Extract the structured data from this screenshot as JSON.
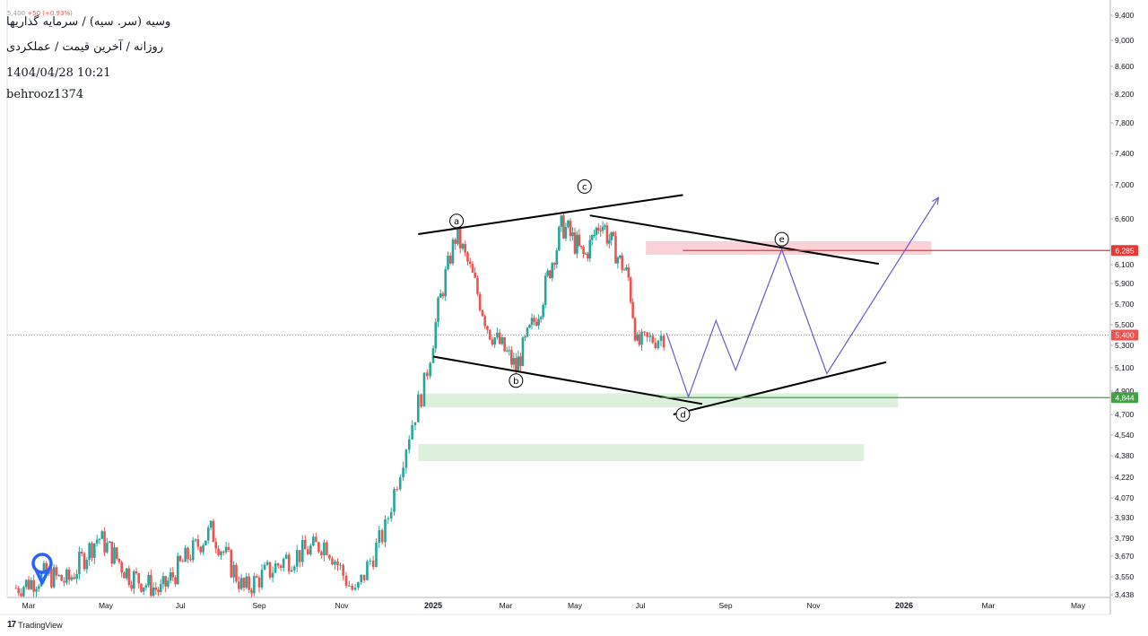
{
  "header": {
    "ohlc_text": "5,400",
    "ohlc_change": "+50 (+0.93%)",
    "symbol": "وسیه (سر. سیه) / سرمایه گذاریها",
    "subtitle": "روزانه / آخرین قیمت / عملکردی",
    "datetime": "1404/04/28 10:21",
    "author": "behrooz1374"
  },
  "footer": {
    "brand_mark": "17",
    "brand": "TradingView"
  },
  "icons": {
    "logo": "location-pin-icon"
  },
  "colors": {
    "up": "#26a69a",
    "down": "#ef5350",
    "wave": "#6a5acd",
    "resistance": "#e53935",
    "support": "#43a047"
  },
  "chart_data": {
    "type": "candlestick",
    "y_axis": {
      "position": "right",
      "ticks": [
        3438,
        3550,
        3670,
        3790,
        3930,
        4070,
        4220,
        4380,
        4540,
        4700,
        4900,
        5100,
        5300,
        5500,
        5700,
        5900,
        6100,
        6300,
        6600,
        7000,
        7400,
        7800,
        8200,
        8600,
        9000,
        9400
      ],
      "tick_labels": [
        "3,438",
        "3,550",
        "3,670",
        "3,790",
        "3,930",
        "4,070",
        "4,220",
        "4,380",
        "4,540",
        "4,700",
        "4,900",
        "5,100",
        "5,300",
        "5,500",
        "5,700",
        "5,900",
        "6,100",
        "6,300",
        "6,600",
        "7,000",
        "7,400",
        "7,800",
        "8,200",
        "8,600",
        "9,000",
        "9,400"
      ]
    },
    "x_axis": {
      "ticks": [
        "2024-03-01",
        "2024-05-01",
        "2024-07-01",
        "2024-09-01",
        "2024-11-01",
        "2025-01-01",
        "2025-03-01",
        "2025-05-01",
        "2025-07-01",
        "2025-09-01",
        "2025-11-01",
        "2026-01-01",
        "2026-03-01",
        "2026-05-01"
      ],
      "tick_labels": [
        "Mar",
        "May",
        "Jul",
        "Sep",
        "Nov",
        "2025",
        "Mar",
        "May",
        "Jul",
        "Sep",
        "Nov",
        "2026",
        "Mar",
        "May"
      ],
      "bold_labels": [
        "2025",
        "2026"
      ]
    },
    "price_path": [
      [
        "2024-02-20",
        3480
      ],
      [
        "2024-03-15",
        3560
      ],
      [
        "2024-04-01",
        3520
      ],
      [
        "2024-04-25",
        3800
      ],
      [
        "2024-05-20",
        3560
      ],
      [
        "2024-06-15",
        3460
      ],
      [
        "2024-07-10",
        3700
      ],
      [
        "2024-07-25",
        3840
      ],
      [
        "2024-08-20",
        3470
      ],
      [
        "2024-09-20",
        3650
      ],
      [
        "2024-10-20",
        3760
      ],
      [
        "2024-11-10",
        3440
      ],
      [
        "2024-11-30",
        3850
      ],
      [
        "2024-12-15",
        4520
      ],
      [
        "2024-12-26",
        4950
      ],
      [
        "2025-01-05",
        5650
      ],
      [
        "2025-01-20",
        6480
      ],
      [
        "2025-02-15",
        5450
      ],
      [
        "2025-03-10",
        5100
      ],
      [
        "2025-04-01",
        5700
      ],
      [
        "2025-04-20",
        6550
      ],
      [
        "2025-05-10",
        6200
      ],
      [
        "2025-05-25",
        6600
      ],
      [
        "2025-06-20",
        5950
      ],
      [
        "2025-06-28",
        5300
      ],
      [
        "2025-07-08",
        5350
      ],
      [
        "2025-07-18",
        5400
      ]
    ],
    "current_price": {
      "value": 5400,
      "label": "5,400"
    },
    "levels": [
      {
        "value": 6285,
        "label": "6,285",
        "color": "#e53935"
      },
      {
        "value": 4844,
        "label": "4,844",
        "color": "#43a047"
      }
    ],
    "zones": [
      {
        "from": "2025-07-05",
        "to": "2026-01-20",
        "low": 6230,
        "high": 6380,
        "color": "#f8c9cf"
      },
      {
        "from": "2024-12-22",
        "to": "2025-12-28",
        "low": 4760,
        "high": 4880,
        "color": "#d6eed5"
      },
      {
        "from": "2024-12-22",
        "to": "2025-12-05",
        "low": 4340,
        "high": 4470,
        "color": "#d6eed5"
      }
    ],
    "trendlines": [
      {
        "from": [
          "2024-12-22",
          6450
        ],
        "to": [
          "2025-08-01",
          6880
        ]
      },
      {
        "from": [
          "2025-05-15",
          6640
        ],
        "to": [
          "2025-12-15",
          6110
        ]
      },
      {
        "from": [
          "2025-01-01",
          5200
        ],
        "to": [
          "2025-08-15",
          4790
        ]
      },
      {
        "from": [
          "2025-07-25",
          4700
        ],
        "to": [
          "2025-12-20",
          5150
        ]
      }
    ],
    "wave_labels": [
      {
        "label": "a",
        "date": "2025-01-20",
        "price": 6580
      },
      {
        "label": "b",
        "date": "2025-03-10",
        "price": 4990
      },
      {
        "label": "c",
        "date": "2025-05-10",
        "price": 6980
      },
      {
        "label": "d",
        "date": "2025-08-01",
        "price": 4700
      },
      {
        "label": "e",
        "date": "2025-10-10",
        "price": 6400
      }
    ],
    "projection": [
      [
        "2025-07-20",
        5420
      ],
      [
        "2025-08-05",
        4850
      ],
      [
        "2025-08-25",
        5540
      ],
      [
        "2025-09-08",
        5080
      ],
      [
        "2025-10-10",
        6300
      ],
      [
        "2025-11-10",
        5050
      ],
      [
        "2026-01-25",
        6850
      ]
    ]
  }
}
